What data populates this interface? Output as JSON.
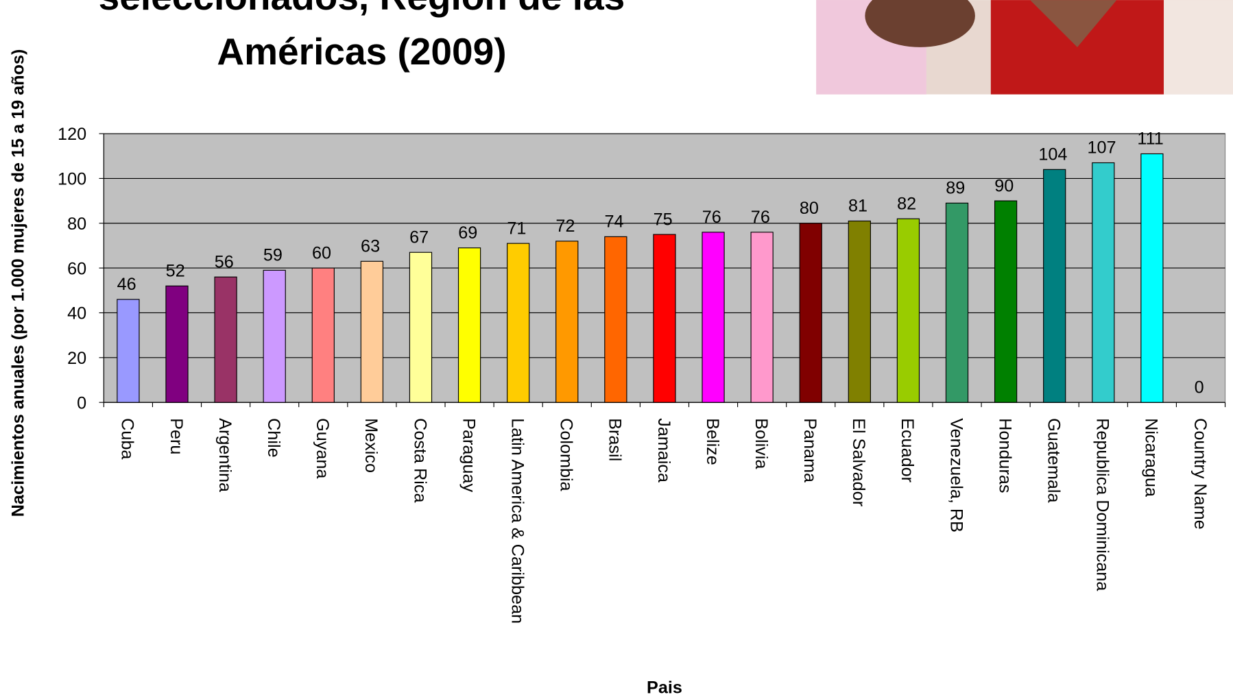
{
  "chart_data": {
    "type": "bar",
    "title": [
      "seleccionados, Región de las",
      "Américas (2009)"
    ],
    "x_label": "Pais",
    "y_label": "Nacimientos anuales (por 1.000 mujeres de 15 a 19 años)",
    "categories": [
      "Cuba",
      "Peru",
      "Argentina",
      "Chile",
      "Guyana",
      "Mexico",
      "Costa Rica",
      "Paraguay",
      "Latin America & Caribbean",
      "Colombia",
      "Brasil",
      "Jamaica",
      "Belize",
      "Bolivia",
      "Panama",
      "El Salvador",
      "Ecuador",
      "Venezuela, RB",
      "Honduras",
      "Guatemala",
      "Republica Dominicana",
      "Nicaragua",
      "Country Name"
    ],
    "values": [
      46,
      52,
      56,
      59,
      60,
      63,
      67,
      69,
      71,
      72,
      74,
      75,
      76,
      76,
      80,
      81,
      82,
      89,
      90,
      104,
      107,
      111,
      0
    ],
    "colors": [
      "#9999ff",
      "#800080",
      "#993366",
      "#cc99ff",
      "#ff8080",
      "#ffcc99",
      "#ffff99",
      "#ffff00",
      "#ffcc00",
      "#ff9900",
      "#ff6600",
      "#ff0000",
      "#ff00ff",
      "#ff99cc",
      "#800000",
      "#808000",
      "#99cc00",
      "#339966",
      "#008000",
      "#008080",
      "#33cccc",
      "#00ffff",
      "#ffffff"
    ],
    "ylim": [
      0,
      120
    ],
    "yticks": [
      0,
      20,
      40,
      60,
      80,
      100,
      120
    ],
    "grid": true
  }
}
